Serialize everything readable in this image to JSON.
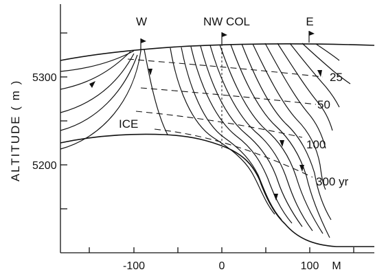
{
  "diagram": {
    "y_axis_label": "ALTITUDE ( m )",
    "y_ticks": [
      "5300",
      "5200"
    ],
    "x_ticks": [
      "-100",
      "0",
      "100",
      "M"
    ],
    "site_labels": {
      "west": "W",
      "col": "NW COL",
      "east": "E"
    },
    "region_label": "ICE",
    "isochrones": [
      {
        "label": "25"
      },
      {
        "label": "50"
      },
      {
        "label": "100"
      },
      {
        "label": "300 yr"
      }
    ]
  }
}
